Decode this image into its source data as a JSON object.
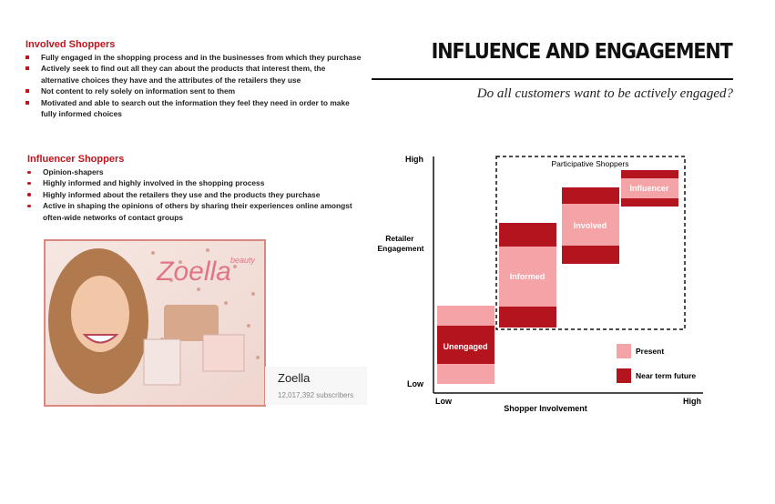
{
  "header": {
    "title": "INFLUENCE AND ENGAGEMENT",
    "subtitle": "Do all customers want to be actively engaged?"
  },
  "involved": {
    "title": "Involved Shoppers",
    "items": [
      "Fully engaged in the shopping process and in the businesses from which they purchase",
      "Actively seek to find out all they can about the products that interest them, the alternative choices they have and the attributes of the retailers they use",
      "Not content to rely solely on information sent to them",
      "Motivated and able to search out the information they feel they need in order to make fully informed choices"
    ]
  },
  "influencer": {
    "title": "Influencer Shoppers",
    "items": [
      "Opinion-shapers",
      "Highly informed and highly involved in the shopping process",
      "Highly informed about the retailers they use and the products they purchase",
      "Active in shaping the opinions of others by sharing their experiences online amongst often-wide networks of contact groups"
    ]
  },
  "photo": {
    "logo": "Zoella",
    "logo_tag": "beauty",
    "channel": "Zoella",
    "subscribers": "12,017,392 subscribers"
  },
  "diagram": {
    "y_axis": {
      "label": "Retailer Engagement",
      "high": "High",
      "low": "Low"
    },
    "x_axis": {
      "label": "Shopper Involvement",
      "low": "Low",
      "high": "High"
    },
    "group_label": "Participative Shoppers",
    "stages": [
      "Unengaged",
      "Informed",
      "Involved",
      "Influencer"
    ],
    "legend": [
      "Present",
      "Near term future"
    ]
  }
}
